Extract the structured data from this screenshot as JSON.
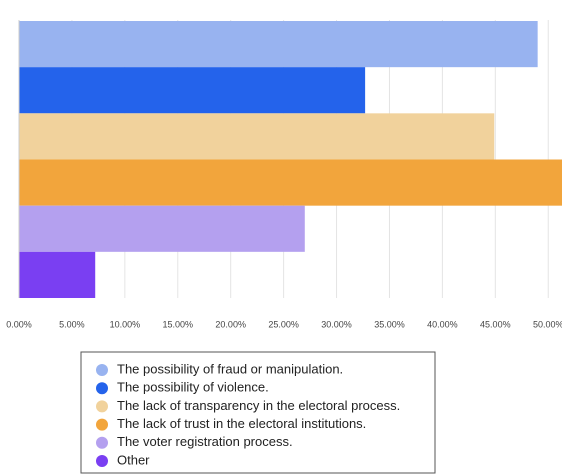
{
  "chart_data": {
    "type": "bar",
    "orientation": "horizontal",
    "categories": [
      "The possibility of fraud or manipulation.",
      "The possibility of violence.",
      "The lack of transparency in the electoral process.",
      "The lack of trust in the electoral institutions.",
      "The voter registration process.",
      "Other"
    ],
    "values": [
      49,
      32.7,
      44.9,
      52,
      27,
      7.2
    ],
    "colors": [
      "#98b3f0",
      "#2463eb",
      "#f1d29c",
      "#f2a53c",
      "#b4a0ef",
      "#7a3ff2"
    ],
    "xlim": [
      0,
      51.3
    ],
    "xticks": [
      {
        "value": 0,
        "label": "0.00%"
      },
      {
        "value": 5,
        "label": "5.00%"
      },
      {
        "value": 10,
        "label": "10.00%"
      },
      {
        "value": 15,
        "label": "15.00%"
      },
      {
        "value": 20,
        "label": "20.00%"
      },
      {
        "value": 25,
        "label": "25.00%"
      },
      {
        "value": 30,
        "label": "30.00%"
      },
      {
        "value": 35,
        "label": "35.00%"
      },
      {
        "value": 40,
        "label": "40.00%"
      },
      {
        "value": 45,
        "label": "45.00%"
      },
      {
        "value": 50,
        "label": "50.00%"
      }
    ],
    "grid": true,
    "legend": "bottom"
  }
}
